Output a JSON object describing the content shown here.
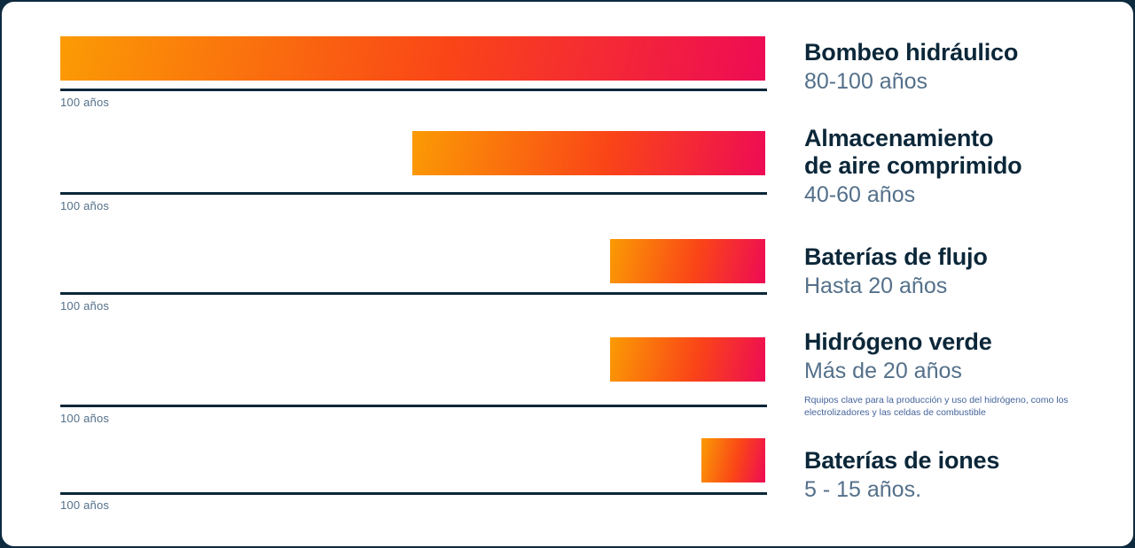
{
  "frame": {
    "background_color": "#ffffff",
    "border_color": "#0e2a3f"
  },
  "colors": {
    "title_navy": "#0b2739",
    "subtitle_slate": "#54708a",
    "note_blue": "#44639b",
    "axis_line": "#0b2739",
    "bar_gradient_start": "#fb9b04",
    "bar_gradient_mid": "#fa4517",
    "bar_gradient_end": "#ee0b55"
  },
  "chart_data": {
    "type": "bar",
    "orientation": "horizontal",
    "axis": {
      "range_years": [
        0,
        100
      ],
      "max_tick_label": "100 años",
      "bars_right_aligned_at": 100,
      "grid": false
    },
    "rows": [
      {
        "title": "Bombeo hidráulico",
        "range_label": "80-100 años",
        "bar_length_years": 100,
        "axis_label": "100 años"
      },
      {
        "title": "Almacenamiento de aire comprimido",
        "title_lines": [
          "Almacenamiento",
          "de aire comprimido"
        ],
        "range_label": "40-60 años",
        "bar_length_years": 50,
        "axis_label": "100 años"
      },
      {
        "title": "Baterías de flujo",
        "range_label": "Hasta 20 años",
        "bar_length_years": 22,
        "axis_label": "100 años"
      },
      {
        "title": "Hidrógeno verde",
        "range_label": "Más de 20 años",
        "note": "Rquipos clave para la producción y uso del hidrógeno, como los electrolizadores y las celdas de combustible",
        "bar_length_years": 22,
        "axis_label": "100 años"
      },
      {
        "title": "Baterías de iones",
        "range_label": "5 - 15 años.",
        "bar_length_years": 9,
        "axis_label": "100 años"
      }
    ]
  }
}
